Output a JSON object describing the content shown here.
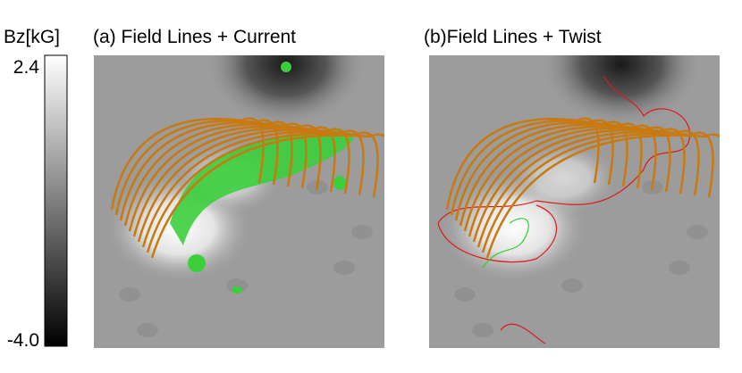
{
  "colorbar": {
    "label": "Bz[kG]",
    "max_label": "2.4",
    "min_label": "-4.0"
  },
  "panels": [
    {
      "title": "(a) Field Lines + Current"
    },
    {
      "title": "(b)Field Lines + Twist"
    }
  ]
}
